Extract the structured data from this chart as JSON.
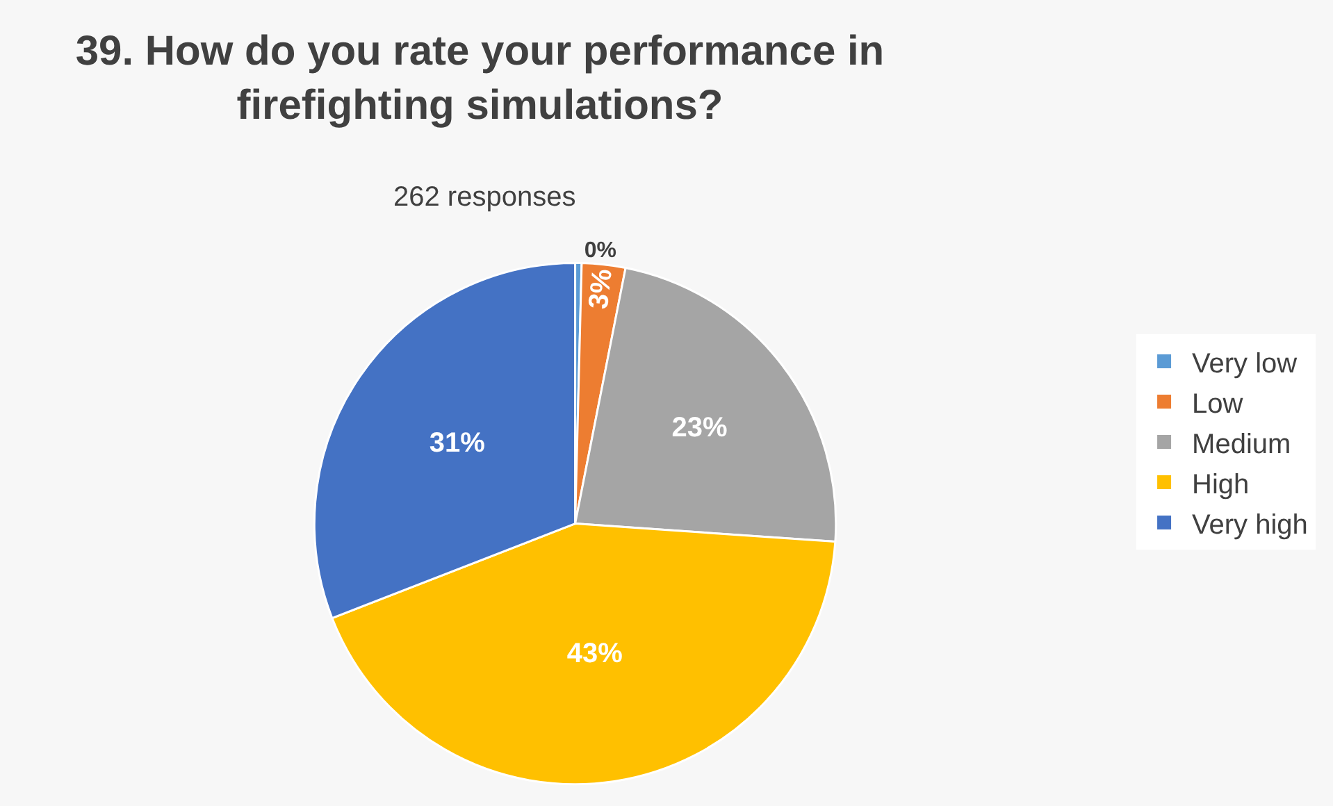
{
  "chart_data": {
    "type": "pie",
    "title": "39. How do you rate your performance in firefighting simulations?",
    "subtitle": "262 responses",
    "categories": [
      "Very low",
      "Low",
      "Medium",
      "High",
      "Very high"
    ],
    "values": [
      0.4,
      2.7,
      23,
      43,
      30.9
    ],
    "value_labels": [
      "0%",
      "3%",
      "23%",
      "43%",
      "31%"
    ],
    "colors": [
      "#5b9bd5",
      "#ed7d31",
      "#a5a5a5",
      "#ffc000",
      "#4472c4"
    ],
    "legend": "right"
  }
}
